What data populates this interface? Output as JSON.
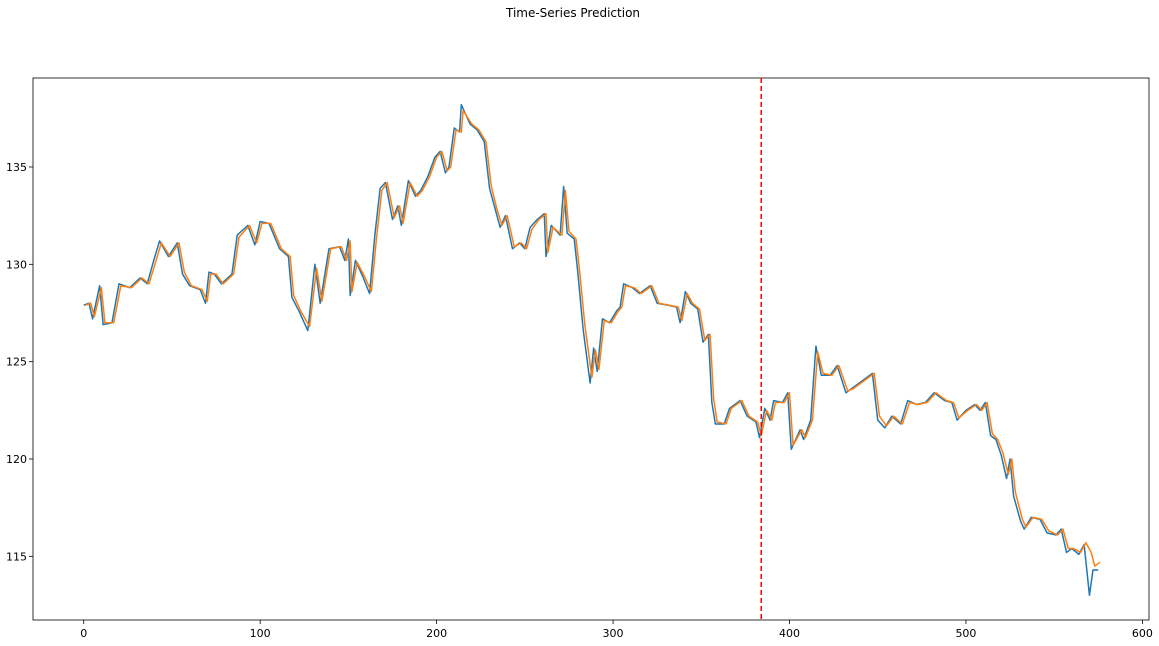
{
  "chart_data": {
    "type": "line",
    "title": "Time-Series Prediction",
    "xlim": [
      -28.75,
      603.75
    ],
    "ylim": [
      111.73,
      139.57
    ],
    "xticks": [
      0,
      100,
      200,
      300,
      400,
      500,
      600
    ],
    "yticks": [
      115,
      120,
      125,
      130,
      135
    ],
    "grid": false,
    "vline": {
      "x": 384,
      "color": "#ff0000",
      "dashed": true
    },
    "series": [
      {
        "color": "#1f77b4",
        "x": [
          0,
          3,
          5,
          9,
          11,
          16,
          20,
          26,
          32,
          36,
          40,
          43,
          48,
          53,
          56,
          60,
          66,
          69,
          71,
          74,
          78,
          84,
          87,
          93,
          97,
          100,
          105,
          111,
          116,
          118,
          122,
          127,
          131,
          134,
          139,
          145,
          148,
          150,
          151,
          154,
          158,
          162,
          165,
          168,
          171,
          175,
          178,
          180,
          184,
          188,
          191,
          195,
          199,
          202,
          205,
          207,
          210,
          213,
          214,
          219,
          223,
          227,
          230,
          233,
          236,
          239,
          243,
          247,
          250,
          253,
          257,
          261,
          262,
          265,
          270,
          272,
          274,
          278,
          280,
          283,
          287,
          289,
          291,
          294,
          298,
          302,
          304,
          306,
          311,
          315,
          321,
          325,
          331,
          336,
          338,
          341,
          344,
          348,
          351,
          354,
          356,
          358,
          363,
          366,
          372,
          376,
          381,
          383,
          386,
          389,
          391,
          396,
          399,
          401,
          406,
          408,
          412,
          415,
          418,
          423,
          427,
          432,
          435,
          441,
          447,
          450,
          454,
          458,
          463,
          467,
          472,
          477,
          482,
          488,
          492,
          495,
          500,
          505,
          508,
          511,
          514,
          517,
          520,
          523,
          525,
          527,
          531,
          533,
          537,
          542,
          546,
          551,
          554,
          557,
          560,
          564,
          567,
          570,
          572,
          575
        ],
        "values": [
          127.9,
          128.0,
          127.2,
          128.9,
          126.9,
          127.0,
          129.0,
          128.8,
          129.3,
          129.0,
          130.3,
          131.2,
          130.4,
          131.1,
          129.5,
          128.9,
          128.7,
          128.0,
          129.6,
          129.5,
          129.0,
          129.5,
          131.5,
          132.0,
          131.0,
          132.2,
          132.1,
          130.8,
          130.4,
          128.3,
          127.6,
          126.6,
          130.0,
          128.0,
          130.8,
          130.9,
          130.2,
          131.3,
          128.4,
          130.2,
          129.4,
          128.5,
          131.5,
          133.9,
          134.2,
          132.3,
          133.0,
          132.0,
          134.3,
          133.5,
          133.8,
          134.5,
          135.5,
          135.8,
          134.7,
          135.0,
          137.0,
          136.8,
          138.2,
          137.2,
          136.9,
          136.3,
          133.9,
          132.9,
          131.9,
          132.5,
          130.8,
          131.1,
          130.8,
          131.9,
          132.3,
          132.6,
          130.4,
          132.0,
          131.5,
          134.0,
          131.6,
          131.3,
          129.6,
          126.7,
          123.9,
          125.7,
          124.5,
          127.2,
          127.0,
          127.6,
          127.8,
          129.0,
          128.8,
          128.5,
          128.9,
          128.0,
          127.9,
          127.8,
          127.0,
          128.6,
          128.0,
          127.7,
          126.0,
          126.4,
          122.9,
          121.8,
          121.8,
          122.6,
          123.0,
          122.2,
          121.9,
          121.1,
          122.6,
          122.0,
          123.0,
          122.9,
          123.4,
          120.5,
          121.5,
          121.0,
          122.0,
          125.8,
          124.3,
          124.3,
          124.8,
          123.4,
          123.6,
          124.0,
          124.4,
          122.0,
          121.6,
          122.2,
          121.8,
          123.0,
          122.8,
          122.9,
          123.4,
          123.0,
          122.9,
          122.0,
          122.5,
          122.8,
          122.5,
          122.9,
          121.2,
          121.0,
          120.2,
          119.0,
          120.0,
          118.1,
          116.8,
          116.4,
          117.0,
          116.9,
          116.2,
          116.1,
          116.4,
          115.2,
          115.4,
          115.1,
          115.6,
          113.0,
          114.3,
          114.3
        ]
      },
      {
        "color": "#ff7f0e",
        "x": [
          1,
          4,
          6,
          10,
          12,
          17,
          21,
          27,
          33,
          37,
          41,
          44,
          49,
          54,
          57,
          61,
          67,
          70,
          72,
          75,
          79,
          85,
          88,
          94,
          98,
          101,
          106,
          112,
          117,
          119,
          123,
          128,
          132,
          135,
          140,
          146,
          149,
          151,
          152,
          155,
          159,
          163,
          166,
          169,
          172,
          176,
          179,
          181,
          185,
          189,
          192,
          196,
          200,
          203,
          206,
          208,
          211,
          214,
          215,
          220,
          224,
          228,
          231,
          234,
          237,
          240,
          244,
          248,
          251,
          254,
          258,
          262,
          263,
          266,
          271,
          273,
          275,
          279,
          281,
          284,
          288,
          290,
          292,
          295,
          299,
          303,
          305,
          307,
          312,
          316,
          322,
          326,
          332,
          337,
          339,
          342,
          345,
          349,
          352,
          355,
          357,
          359,
          364,
          367,
          373,
          377,
          382,
          384,
          387,
          390,
          392,
          397,
          400,
          402,
          407,
          409,
          413,
          416,
          419,
          424,
          428,
          433,
          436,
          442,
          448,
          451,
          455,
          459,
          464,
          468,
          473,
          478,
          483,
          489,
          493,
          496,
          501,
          506,
          509,
          512,
          515,
          518,
          521,
          524,
          526,
          528,
          532,
          534,
          538,
          543,
          547,
          552,
          555,
          558,
          561,
          565,
          568,
          571,
          573,
          576
        ],
        "values": [
          127.9,
          128.0,
          127.3,
          128.8,
          127.0,
          127.0,
          128.9,
          128.8,
          129.3,
          129.0,
          130.2,
          131.1,
          130.4,
          131.1,
          129.6,
          128.9,
          128.7,
          128.1,
          129.5,
          129.5,
          129.0,
          129.5,
          131.4,
          132.0,
          131.1,
          132.1,
          132.1,
          130.8,
          130.4,
          128.4,
          127.6,
          126.8,
          129.8,
          128.1,
          130.8,
          130.9,
          130.2,
          131.2,
          128.6,
          130.1,
          129.4,
          128.6,
          131.4,
          133.8,
          134.2,
          132.4,
          133.0,
          132.1,
          134.2,
          133.5,
          133.8,
          134.5,
          135.5,
          135.8,
          134.8,
          135.0,
          136.9,
          136.8,
          137.9,
          137.2,
          136.9,
          136.3,
          134.0,
          132.9,
          132.0,
          132.5,
          130.9,
          131.1,
          130.8,
          131.8,
          132.3,
          132.6,
          130.6,
          131.9,
          131.5,
          133.8,
          131.7,
          131.3,
          129.7,
          126.9,
          124.2,
          125.6,
          124.6,
          127.1,
          127.0,
          127.6,
          127.8,
          128.9,
          128.8,
          128.5,
          128.9,
          128.0,
          127.9,
          127.8,
          127.1,
          128.5,
          128.0,
          127.7,
          126.1,
          126.4,
          123.1,
          121.9,
          121.8,
          122.6,
          123.0,
          122.2,
          121.9,
          121.2,
          122.5,
          122.0,
          122.9,
          122.9,
          123.4,
          120.7,
          121.5,
          121.1,
          122.0,
          125.5,
          124.4,
          124.3,
          124.8,
          123.5,
          123.6,
          124.0,
          124.4,
          122.2,
          121.7,
          122.2,
          121.8,
          122.9,
          122.8,
          122.9,
          123.4,
          123.0,
          122.9,
          122.1,
          122.5,
          122.8,
          122.5,
          122.9,
          121.3,
          121.0,
          120.3,
          119.2,
          120.0,
          118.3,
          116.9,
          116.5,
          117.0,
          116.9,
          116.3,
          116.1,
          116.4,
          115.4,
          115.4,
          115.2,
          115.7,
          115.2,
          114.5,
          114.7
        ]
      }
    ]
  }
}
